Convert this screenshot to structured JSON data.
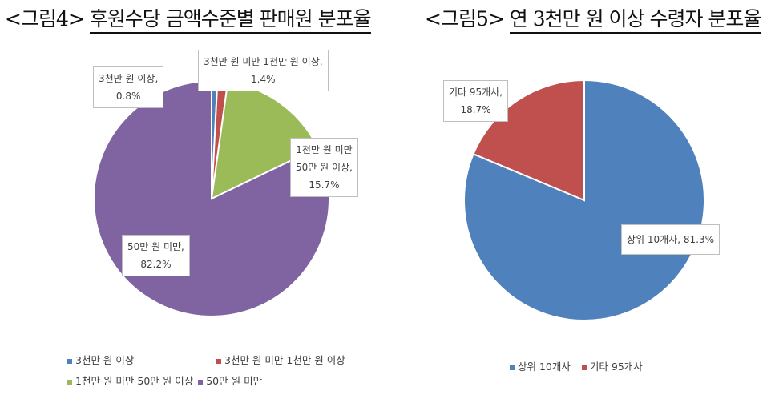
{
  "chart_data": [
    {
      "type": "pie",
      "title_prefix": "<그림4>",
      "title": "후원수당 금액수준별 판매원 분포율",
      "categories": [
        "3천만 원 이상",
        "3천만 원 미만 1천만 원 이상",
        "1천만 원 미만 50만 원 이상",
        "50만 원 미만"
      ],
      "values": [
        0.8,
        1.4,
        15.7,
        82.2
      ],
      "data_labels": [
        "3천만 원 이상,\n0.8%",
        "3천만 원 미만 1천만 원 이상,\n1.4%",
        "1천만 원 미만\n50만 원 이상,\n15.7%",
        "50만 원 미만,\n82.2%"
      ],
      "colors": [
        "#4f81bd",
        "#c0504d",
        "#9bbb59",
        "#8064a2"
      ],
      "legend_position": "bottom"
    },
    {
      "type": "pie",
      "title_prefix": "<그림5>",
      "title": "연 3천만 원 이상 수령자 분포율",
      "categories": [
        "상위 10개사",
        "기타 95개사"
      ],
      "values": [
        81.3,
        18.7
      ],
      "data_labels": [
        "상위 10개사, 81.3%",
        "기타 95개사,\n18.7%"
      ],
      "colors": [
        "#4f81bd",
        "#c0504d"
      ],
      "legend_position": "bottom"
    }
  ]
}
